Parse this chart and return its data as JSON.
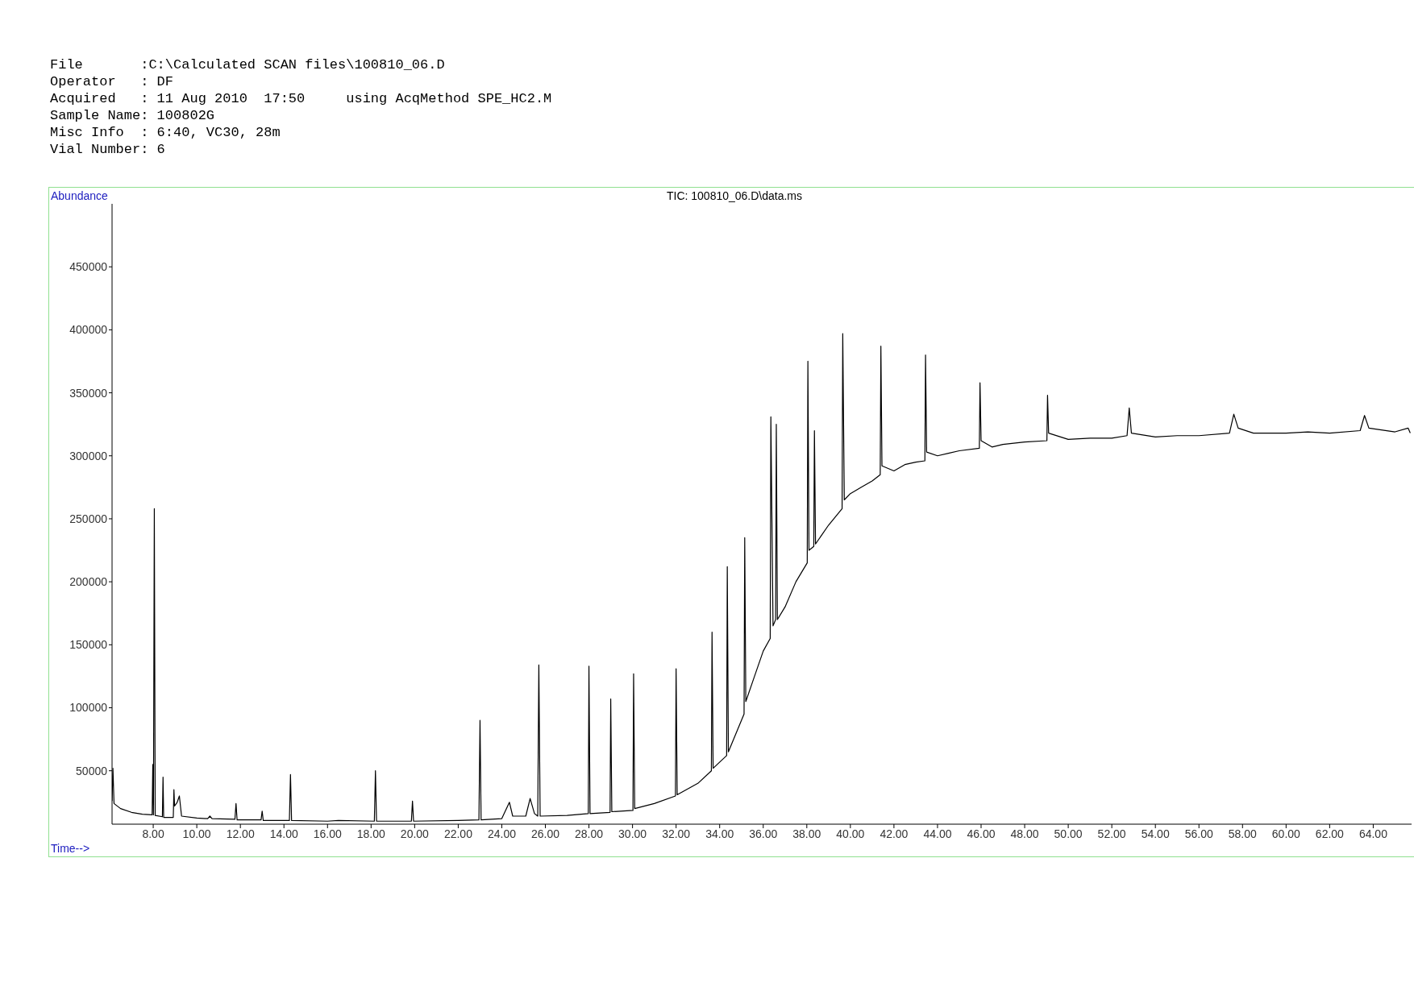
{
  "chart_data": {
    "type": "line",
    "title": "TIC: 100810_06.D\\data.ms",
    "xlabel": "Time-->",
    "ylabel": "Abundance",
    "annotations": [
      "File       :C:\\Calculated SCAN files\\100810_06.D",
      "Operator   : DF",
      "Acquired   : 11 Aug 2010  17:50     using AcqMethod SPE_HC2.M",
      "Sample Name: 100802G",
      "Misc Info  : 6:40, VC30, 28m",
      "Vial Number: 6"
    ],
    "xlim": [
      6.11,
      65.76
    ],
    "ylim": [
      7600,
      500000
    ],
    "xticks": [
      {
        "value": 8,
        "label": "8.00"
      },
      {
        "value": 10,
        "label": "10.00"
      },
      {
        "value": 12,
        "label": "12.00"
      },
      {
        "value": 14,
        "label": "14.00"
      },
      {
        "value": 16,
        "label": "16.00"
      },
      {
        "value": 18,
        "label": "18.00"
      },
      {
        "value": 20,
        "label": "20.00"
      },
      {
        "value": 22,
        "label": "22.00"
      },
      {
        "value": 24,
        "label": "24.00"
      },
      {
        "value": 26,
        "label": "26.00"
      },
      {
        "value": 28,
        "label": "28.00"
      },
      {
        "value": 30,
        "label": "30.00"
      },
      {
        "value": 32,
        "label": "32.00"
      },
      {
        "value": 34,
        "label": "34.00"
      },
      {
        "value": 36,
        "label": "36.00"
      },
      {
        "value": 38,
        "label": "38.00"
      },
      {
        "value": 40,
        "label": "40.00"
      },
      {
        "value": 42,
        "label": "42.00"
      },
      {
        "value": 44,
        "label": "44.00"
      },
      {
        "value": 46,
        "label": "46.00"
      },
      {
        "value": 48,
        "label": "48.00"
      },
      {
        "value": 50,
        "label": "50.00"
      },
      {
        "value": 52,
        "label": "52.00"
      },
      {
        "value": 54,
        "label": "54.00"
      },
      {
        "value": 56,
        "label": "56.00"
      },
      {
        "value": 58,
        "label": "58.00"
      },
      {
        "value": 60,
        "label": "60.00"
      },
      {
        "value": 62,
        "label": "62.00"
      },
      {
        "value": 64,
        "label": "64.00"
      }
    ],
    "yticks": [
      50000,
      100000,
      150000,
      200000,
      250000,
      300000,
      350000,
      400000,
      450000
    ],
    "grid": false,
    "marker": "none",
    "line_style": "solid",
    "series": [
      {
        "color": "#000000",
        "x": [
          6.11,
          6.15,
          6.2,
          6.5,
          7.0,
          7.5,
          7.95,
          7.98,
          8.01,
          8.05,
          8.09,
          8.42,
          8.45,
          8.48,
          8.92,
          8.95,
          8.98,
          9.1,
          9.2,
          9.3,
          10.0,
          10.5,
          10.6,
          10.7,
          11.75,
          11.8,
          11.85,
          12.95,
          13.0,
          13.05,
          14.25,
          14.3,
          14.35,
          16.0,
          16.5,
          18.15,
          18.2,
          18.25,
          19.85,
          19.9,
          19.95,
          22.0,
          22.95,
          23.0,
          23.05,
          24.0,
          24.35,
          24.5,
          25.1,
          25.3,
          25.5,
          25.65,
          25.7,
          25.76,
          27.0,
          27.97,
          28.0,
          28.05,
          28.97,
          29.0,
          29.05,
          30.02,
          30.05,
          30.1,
          31.0,
          31.97,
          32.0,
          32.05,
          33.0,
          33.62,
          33.65,
          33.7,
          34.32,
          34.35,
          34.4,
          35.12,
          35.15,
          35.2,
          35.6,
          36.0,
          36.32,
          36.35,
          36.45,
          36.57,
          36.6,
          36.65,
          37.0,
          37.5,
          38.02,
          38.05,
          38.1,
          38.32,
          38.35,
          38.4,
          39.0,
          39.62,
          39.65,
          39.72,
          40.0,
          40.5,
          41.0,
          41.37,
          41.4,
          41.45,
          42.0,
          42.5,
          43.0,
          43.42,
          43.45,
          43.5,
          44.0,
          44.5,
          45.0,
          45.92,
          45.95,
          46.0,
          46.5,
          47.0,
          48.0,
          49.02,
          49.05,
          49.1,
          50.0,
          51.0,
          52.0,
          52.7,
          52.8,
          52.9,
          54.0,
          55.0,
          56.0,
          57.4,
          57.6,
          57.8,
          58.5,
          60.0,
          61.0,
          62.0,
          63.4,
          63.6,
          63.8,
          65.0,
          65.6,
          65.7
        ],
        "values": [
          26000,
          52000,
          24000,
          20000,
          17000,
          15500,
          15000,
          55000,
          15000,
          258000,
          14500,
          13500,
          45000,
          13000,
          13000,
          35000,
          22000,
          25000,
          30000,
          14000,
          12500,
          12000,
          14000,
          12000,
          11500,
          24000,
          11000,
          11000,
          18000,
          10500,
          10500,
          47000,
          10500,
          10000,
          10500,
          10000,
          50000,
          10000,
          10000,
          26000,
          10000,
          10500,
          11000,
          90000,
          11000,
          12000,
          25000,
          14000,
          14000,
          28000,
          16000,
          14000,
          134000,
          14000,
          14500,
          16000,
          133000,
          16000,
          17000,
          107000,
          17500,
          18500,
          127000,
          20000,
          24000,
          30000,
          131000,
          31000,
          40000,
          50000,
          160000,
          52000,
          62000,
          212000,
          65000,
          95000,
          235000,
          105000,
          125000,
          145000,
          155000,
          331000,
          165000,
          170000,
          325000,
          170000,
          180000,
          200000,
          215000,
          375000,
          225000,
          228000,
          320000,
          230000,
          245000,
          258000,
          397000,
          265000,
          270000,
          275000,
          280000,
          285000,
          387000,
          292000,
          288000,
          293000,
          295000,
          296000,
          380000,
          303000,
          300000,
          302000,
          304000,
          306000,
          358000,
          312000,
          307000,
          309000,
          311000,
          312000,
          348000,
          318000,
          313000,
          314000,
          314000,
          316000,
          338000,
          318000,
          315000,
          316000,
          316000,
          318000,
          333000,
          322000,
          318000,
          318000,
          319000,
          318000,
          320000,
          332000,
          322000,
          319000,
          322000,
          318000
        ]
      }
    ]
  }
}
